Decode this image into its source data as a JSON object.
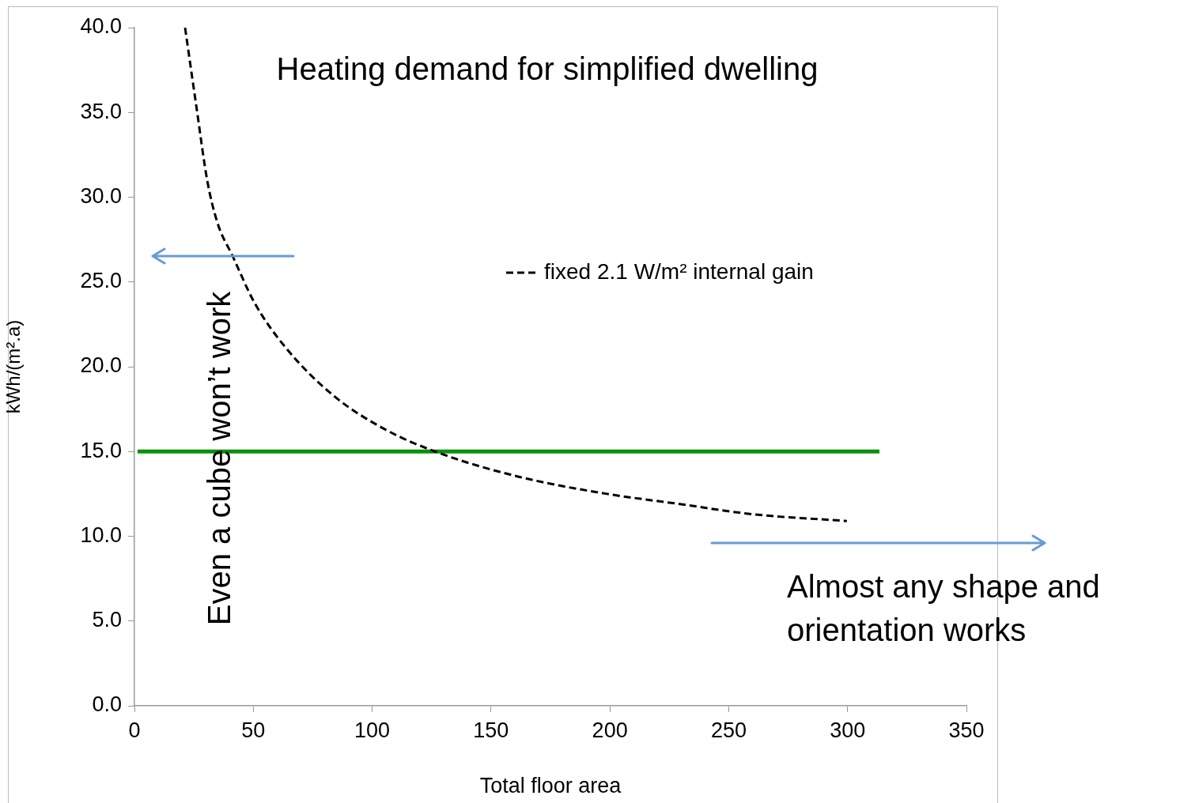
{
  "chart_data": {
    "type": "line",
    "title": "Heating demand for simplified dwelling",
    "xlabel": "Total floor area",
    "ylabel": "kWh/(m².a)",
    "xlim": [
      0,
      350
    ],
    "xticks": [
      0,
      50,
      100,
      150,
      200,
      250,
      300,
      350
    ],
    "ylim": [
      0,
      40
    ],
    "yticks": [
      {
        "value": 0,
        "label": "0.0"
      },
      {
        "value": 5,
        "label": "5.0"
      },
      {
        "value": 10,
        "label": "10.0"
      },
      {
        "value": 15,
        "label": "15.0"
      },
      {
        "value": 20,
        "label": "20.0"
      },
      {
        "value": 25,
        "label": "25.0"
      },
      {
        "value": 30,
        "label": "30.0"
      },
      {
        "value": 35,
        "label": "35.0"
      },
      {
        "value": 40,
        "label": "40.0"
      }
    ],
    "grid": false,
    "legend": "top right",
    "marker": "none",
    "series": [
      {
        "name": "fixed 2.1 W/m² internal gain",
        "color": "#000000",
        "line_style": "dashed",
        "x": [
          21.3,
          26.1,
          30.6,
          34.9,
          41.4,
          50.4,
          63.2,
          83.7,
          105.5,
          128.4,
          162,
          198.8,
          229.4,
          260,
          299.7
        ],
        "values": [
          40,
          35.3,
          31,
          28.5,
          26.5,
          23.8,
          21.2,
          18.3,
          16.3,
          14.9,
          13.5,
          12.5,
          11.9,
          11.3,
          10.9
        ]
      },
      {
        "color": "#0a900a",
        "line_style": "solid",
        "x": [
          1.3,
          313.4
        ],
        "values": [
          15,
          15
        ]
      }
    ],
    "annotations": [
      "Even a cube won’t work",
      "Almost any shape and orientation works"
    ]
  }
}
